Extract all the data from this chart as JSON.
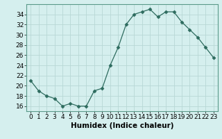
{
  "x": [
    0,
    1,
    2,
    3,
    4,
    5,
    6,
    7,
    8,
    9,
    10,
    11,
    12,
    13,
    14,
    15,
    16,
    17,
    18,
    19,
    20,
    21,
    22,
    23
  ],
  "y": [
    21,
    19,
    18,
    17.5,
    16,
    16.5,
    16,
    16,
    19,
    19.5,
    24,
    27.5,
    32,
    34,
    34.5,
    35,
    33.5,
    34.5,
    34.5,
    32.5,
    31,
    29.5,
    27.5,
    25.5
  ],
  "line_color": "#2d6b5e",
  "marker": "D",
  "marker_size": 2.5,
  "bg_color": "#d5efee",
  "grid_color": "#b8d8d5",
  "xlabel": "Humidex (Indice chaleur)",
  "ylabel": "",
  "xlim": [
    -0.5,
    23.5
  ],
  "ylim": [
    15.0,
    36.0
  ],
  "yticks": [
    16,
    18,
    20,
    22,
    24,
    26,
    28,
    30,
    32,
    34
  ],
  "xticks": [
    0,
    1,
    2,
    3,
    4,
    5,
    6,
    7,
    8,
    9,
    10,
    11,
    12,
    13,
    14,
    15,
    16,
    17,
    18,
    19,
    20,
    21,
    22,
    23
  ],
  "label_fontsize": 7.5,
  "tick_fontsize": 6.5
}
